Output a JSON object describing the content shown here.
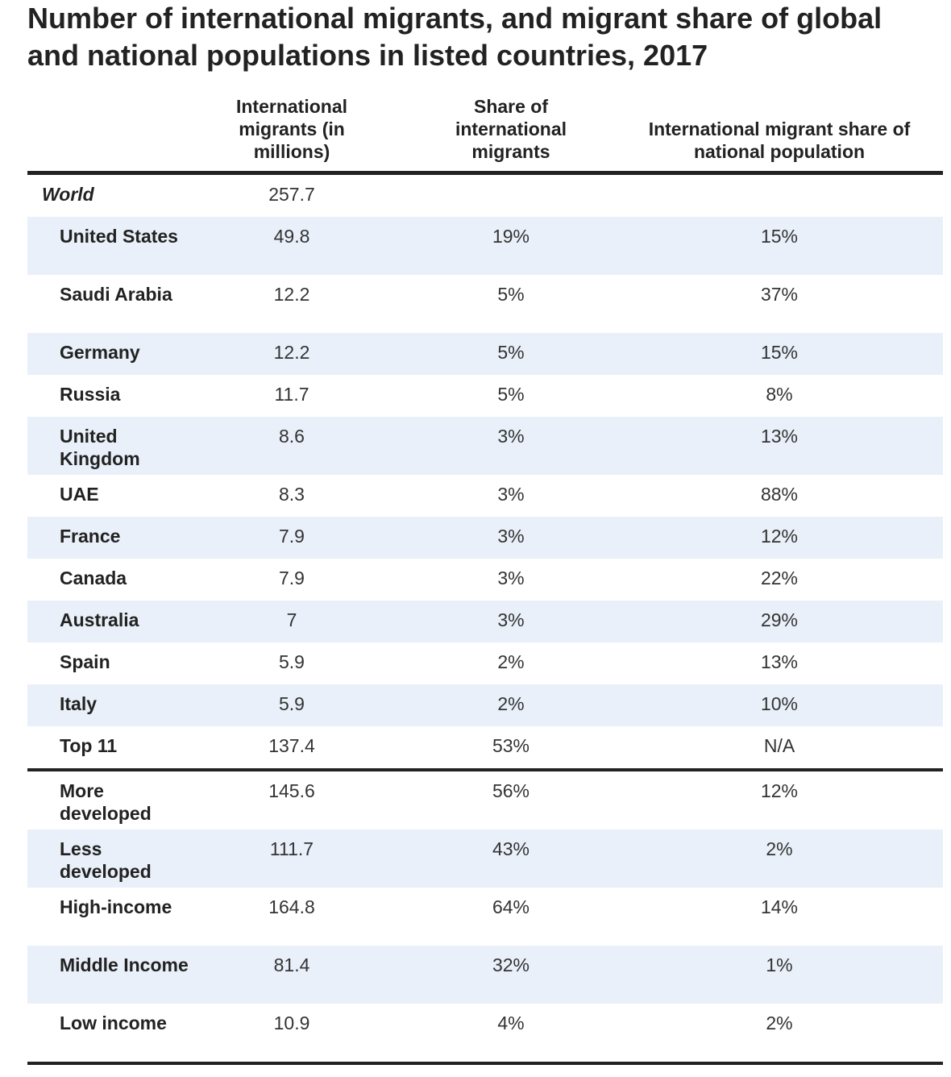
{
  "chart_data": {
    "type": "table",
    "title": "Number of international migrants, and migrant share of global and national populations in listed countries, 2017",
    "columns": [
      "International migrants (in millions)",
      "Share of international migrants",
      "International migrant share of national population"
    ],
    "rows": [
      {
        "label": "World",
        "migrants": "257.7",
        "share_global": "",
        "share_national": ""
      },
      {
        "label": "United States",
        "migrants": "49.8",
        "share_global": "19%",
        "share_national": "15%"
      },
      {
        "label": "Saudi Arabia",
        "migrants": "12.2",
        "share_global": "5%",
        "share_national": "37%"
      },
      {
        "label": "Germany",
        "migrants": "12.2",
        "share_global": "5%",
        "share_national": "15%"
      },
      {
        "label": "Russia",
        "migrants": "11.7",
        "share_global": "5%",
        "share_national": "8%"
      },
      {
        "label": "United Kingdom",
        "migrants": "8.6",
        "share_global": "3%",
        "share_national": "13%"
      },
      {
        "label": "UAE",
        "migrants": "8.3",
        "share_global": "3%",
        "share_national": "88%"
      },
      {
        "label": "France",
        "migrants": "7.9",
        "share_global": "3%",
        "share_national": "12%"
      },
      {
        "label": "Canada",
        "migrants": "7.9",
        "share_global": "3%",
        "share_national": "22%"
      },
      {
        "label": "Australia",
        "migrants": "7",
        "share_global": "3%",
        "share_national": "29%"
      },
      {
        "label": "Spain",
        "migrants": "5.9",
        "share_global": "2%",
        "share_national": "13%"
      },
      {
        "label": "Italy",
        "migrants": "5.9",
        "share_global": "2%",
        "share_national": "10%"
      },
      {
        "label": "Top 11",
        "migrants": "137.4",
        "share_global": "53%",
        "share_national": "N/A"
      },
      {
        "label": " More developed",
        "migrants": "145.6",
        "share_global": "56%",
        "share_national": "12%"
      },
      {
        "label": " Less developed",
        "migrants": "111.7",
        "share_global": "43%",
        "share_national": "2%"
      },
      {
        "label": " High-income",
        "migrants": "164.8",
        "share_global": "64%",
        "share_national": "14%"
      },
      {
        "label": " Middle Income",
        "migrants": "81.4",
        "share_global": "32%",
        "share_national": "1%"
      },
      {
        "label": " Low income",
        "migrants": "10.9",
        "share_global": "4%",
        "share_national": "2%"
      }
    ]
  },
  "colors": {
    "stripe": "#e9f0f9",
    "rule": "#222222",
    "text": "#222222"
  }
}
